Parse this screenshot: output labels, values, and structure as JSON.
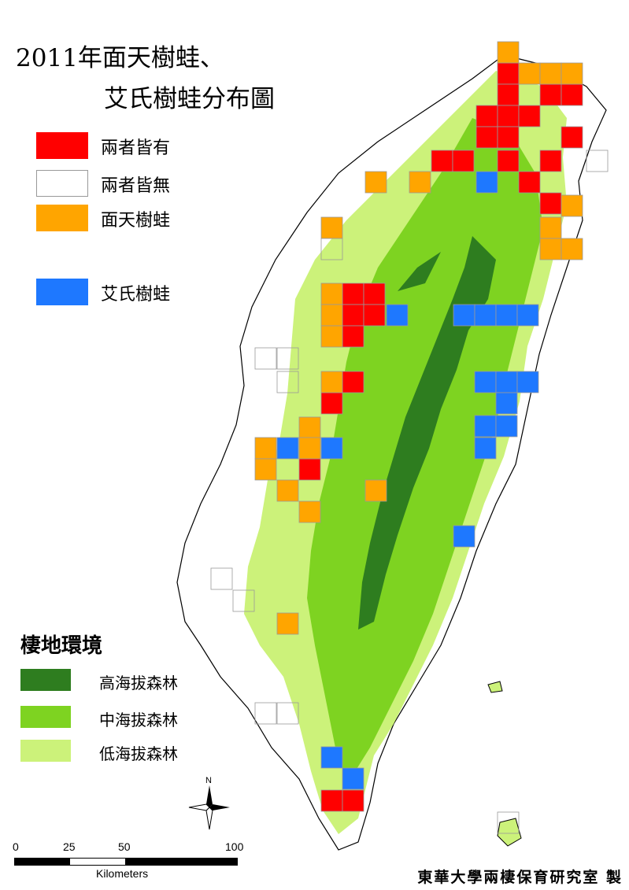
{
  "title": {
    "line1": "2011年面天樹蛙、",
    "line2": "艾氏樹蛙分布圖"
  },
  "legend": [
    {
      "label": "兩者皆有",
      "color": "#ff0000"
    },
    {
      "label": "兩者皆無",
      "color": "#ffffff"
    },
    {
      "label": "面天樹蛙",
      "color": "#ffa500"
    },
    {
      "label": "艾氏樹蛙",
      "color": "#1e78ff"
    }
  ],
  "habitat": {
    "title": "棲地環境",
    "items": [
      {
        "label": "高海拔森林",
        "color": "#2e7d1f"
      },
      {
        "label": "中海拔森林",
        "color": "#7ed321"
      },
      {
        "label": "低海拔森林",
        "color": "#ccf27a"
      }
    ]
  },
  "compass": {
    "label": "N"
  },
  "scale": {
    "ticks": [
      "0",
      "25",
      "50",
      "100"
    ],
    "unit": "Kilometers"
  },
  "credit": "東華大學兩棲保育研究室 製"
}
